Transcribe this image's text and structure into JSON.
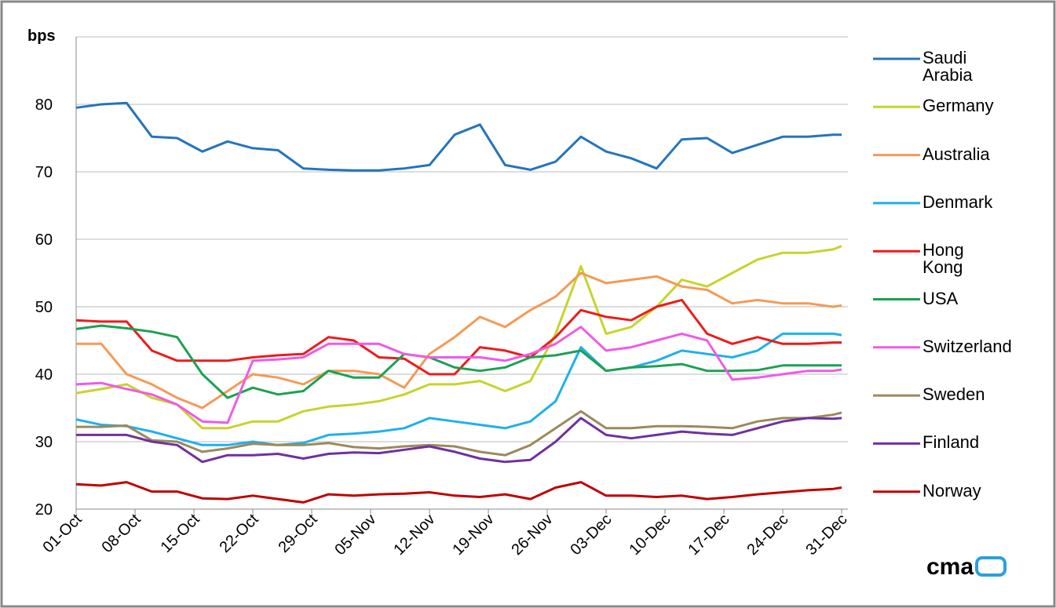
{
  "chart_data": {
    "type": "line",
    "ylabel": "bps",
    "logo": "cma",
    "x": [
      "01-Oct",
      "04-Oct",
      "07-Oct",
      "10-Oct",
      "13-Oct",
      "16-Oct",
      "19-Oct",
      "22-Oct",
      "25-Oct",
      "28-Oct",
      "31-Oct",
      "03-Nov",
      "06-Nov",
      "09-Nov",
      "12-Nov",
      "15-Nov",
      "18-Nov",
      "21-Nov",
      "24-Nov",
      "27-Nov",
      "30-Nov",
      "03-Dec",
      "06-Dec",
      "09-Dec",
      "12-Dec",
      "15-Dec",
      "18-Dec",
      "21-Dec",
      "24-Dec",
      "27-Dec",
      "30-Dec",
      "31-Dec"
    ],
    "xlim": [
      "01-Oct",
      "31-Dec"
    ],
    "xticks": [
      "01-Oct",
      "08-Oct",
      "15-Oct",
      "22-Oct",
      "29-Oct",
      "05-Nov",
      "12-Nov",
      "19-Nov",
      "26-Nov",
      "03-Dec",
      "10-Dec",
      "17-Dec",
      "24-Dec",
      "31-Dec"
    ],
    "ylim": [
      20,
      90
    ],
    "yticks": [
      20,
      30,
      40,
      50,
      60,
      70,
      80
    ],
    "grid": true,
    "series": [
      {
        "name": "Saudi Arabia",
        "color": "#2474bd",
        "values": [
          79.5,
          80,
          80.2,
          75.2,
          75,
          73,
          74.5,
          73.5,
          73.2,
          70.5,
          70.3,
          70.2,
          70.2,
          70.5,
          71,
          75.5,
          77,
          71,
          70.3,
          71.5,
          75.2,
          73,
          72,
          70.5,
          74.8,
          75,
          72.8,
          74,
          75.2,
          75.2,
          75.5,
          75.5
        ]
      },
      {
        "name": "Germany",
        "color": "#c6d42a",
        "values": [
          37.2,
          37.8,
          38.5,
          36.5,
          35.5,
          32,
          32,
          33,
          33,
          34.5,
          35.2,
          35.5,
          36,
          37,
          38.5,
          38.5,
          39,
          37.5,
          39,
          46,
          56,
          46,
          47,
          50,
          54,
          53,
          55,
          57,
          58,
          58,
          58.5,
          59
        ]
      },
      {
        "name": "Australia",
        "color": "#f49a55",
        "values": [
          44.5,
          44.5,
          40,
          38.5,
          36.5,
          35,
          37.5,
          40,
          39.5,
          38.5,
          40.5,
          40.5,
          40,
          38,
          43,
          45.5,
          48.5,
          47,
          49.5,
          51.5,
          55,
          53.5,
          54,
          54.5,
          53,
          52.5,
          50.5,
          51,
          50.5,
          50.5,
          50,
          50.2
        ]
      },
      {
        "name": "Denmark",
        "color": "#1fb0ec",
        "values": [
          33.3,
          32.5,
          32.3,
          31.5,
          30.5,
          29.5,
          29.5,
          30,
          29.5,
          29.8,
          31,
          31.2,
          31.5,
          32,
          33.5,
          33,
          32.5,
          32,
          33,
          36,
          44,
          40.5,
          41,
          42,
          43.5,
          43,
          42.5,
          43.5,
          46,
          46,
          46,
          45.8
        ]
      },
      {
        "name": "Hong Kong",
        "color": "#ec1c1c",
        "values": [
          48,
          47.8,
          47.8,
          43.5,
          42,
          42,
          42,
          42.5,
          42.8,
          43,
          45.5,
          45,
          42.5,
          42.3,
          40,
          40,
          44,
          43.5,
          42.5,
          45.5,
          49.5,
          48.5,
          48,
          50,
          51,
          46,
          44.5,
          45.5,
          44.5,
          44.5,
          44.7,
          44.7
        ]
      },
      {
        "name": "USA",
        "color": "#1ba152",
        "values": [
          46.7,
          47.2,
          46.8,
          46.3,
          45.5,
          40,
          36.5,
          38,
          37,
          37.5,
          40.5,
          39.5,
          39.5,
          43,
          42.5,
          41,
          40.5,
          41,
          42.5,
          42.8,
          43.5,
          40.5,
          41,
          41.2,
          41.5,
          40.5,
          40.5,
          40.6,
          41.3,
          41.3,
          41.3,
          41.3
        ]
      },
      {
        "name": "Switzerland",
        "color": "#f05ae6",
        "values": [
          38.5,
          38.7,
          37.8,
          37,
          35.5,
          33,
          32.8,
          42,
          42.2,
          42.5,
          44.5,
          44.5,
          44.5,
          43,
          42.5,
          42.5,
          42.5,
          42,
          43,
          44.5,
          47,
          43.5,
          44,
          45,
          46,
          45,
          39.2,
          39.5,
          40,
          40.5,
          40.5,
          40.7
        ]
      },
      {
        "name": "Sweden",
        "color": "#9c8a5c",
        "values": [
          32.2,
          32.2,
          32.4,
          30.2,
          30,
          28.5,
          29,
          29.7,
          29.5,
          29.5,
          29.8,
          29.2,
          29,
          29.3,
          29.5,
          29.3,
          28.5,
          28,
          29.5,
          32,
          34.5,
          32,
          32,
          32.3,
          32.3,
          32.2,
          32,
          33,
          33.5,
          33.5,
          34,
          34.3
        ]
      },
      {
        "name": "Finland",
        "color": "#7030a0",
        "values": [
          31,
          31,
          31,
          30,
          29.5,
          27,
          28,
          28,
          28.2,
          27.5,
          28.2,
          28.4,
          28.3,
          28.8,
          29.3,
          28.5,
          27.5,
          27,
          27.3,
          30,
          33.5,
          31,
          30.5,
          31,
          31.5,
          31.2,
          31,
          32,
          33,
          33.5,
          33.4,
          33.5
        ]
      },
      {
        "name": "Norway",
        "color": "#c00000",
        "values": [
          23.7,
          23.5,
          24,
          22.6,
          22.6,
          21.6,
          21.5,
          22,
          21.5,
          21,
          22.2,
          22,
          22.2,
          22.3,
          22.5,
          22,
          21.8,
          22.2,
          21.5,
          23.2,
          24,
          22,
          22,
          21.8,
          22,
          21.5,
          21.8,
          22.2,
          22.5,
          22.8,
          23,
          23.2
        ]
      }
    ]
  }
}
